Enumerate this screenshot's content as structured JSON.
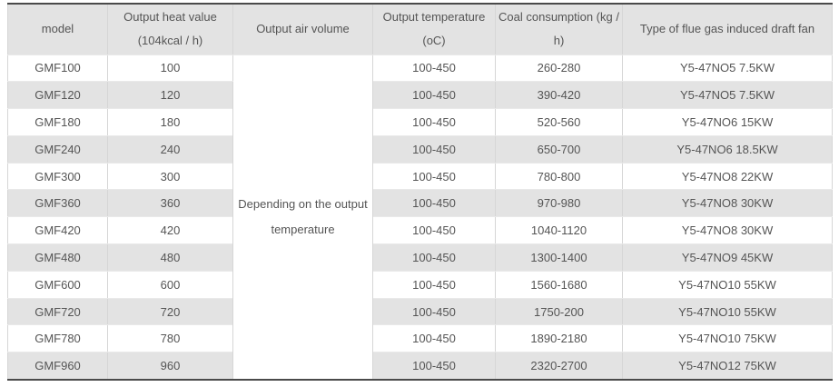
{
  "table": {
    "columns": [
      {
        "label": "model"
      },
      {
        "label": "Output heat value (104kcal / h)"
      },
      {
        "label": "Output air volume"
      },
      {
        "label": "Output temperature (oC)"
      },
      {
        "label": "Coal consumption (kg / h)"
      },
      {
        "label": "Type of flue gas induced draft fan"
      }
    ],
    "air_volume_note": "Depending on the output temperature",
    "rows": [
      [
        "GMF100",
        "100",
        "100-450",
        "260-280",
        "Y5-47NO5 7.5KW"
      ],
      [
        "GMF120",
        "120",
        "100-450",
        "390-420",
        "Y5-47NO5 7.5KW"
      ],
      [
        "GMF180",
        "180",
        "100-450",
        "520-560",
        "Y5-47NO6 15KW"
      ],
      [
        "GMF240",
        "240",
        "100-450",
        "650-700",
        "Y5-47NO6 18.5KW"
      ],
      [
        "GMF300",
        "300",
        "100-450",
        "780-800",
        "Y5-47NO8 22KW"
      ],
      [
        "GMF360",
        "360",
        "100-450",
        "970-980",
        "Y5-47NO8 30KW"
      ],
      [
        "GMF420",
        "420",
        "100-450",
        "1040-1120",
        "Y5-47NO8 30KW"
      ],
      [
        "GMF480",
        "480",
        "100-450",
        "1300-1400",
        "Y5-47NO9 45KW"
      ],
      [
        "GMF600",
        "600",
        "100-450",
        "1560-1680",
        "Y5-47NO10 55KW"
      ],
      [
        "GMF720",
        "720",
        "100-450",
        "1750-200",
        "Y5-47NO10 55KW"
      ],
      [
        "GMF780",
        "780",
        "100-450",
        "1890-2180",
        "Y5-47NO10 75KW"
      ],
      [
        "GMF960",
        "960",
        "100-450",
        "2320-2700",
        "Y5-47NO12 75KW"
      ]
    ]
  },
  "colors": {
    "stripe": "#e3e3e3",
    "header-bg": "#e3e3e3",
    "row-bg": "#ffffff",
    "grid": "#d6d6d6",
    "frame": "#4a4a4a",
    "text": "#555555"
  }
}
